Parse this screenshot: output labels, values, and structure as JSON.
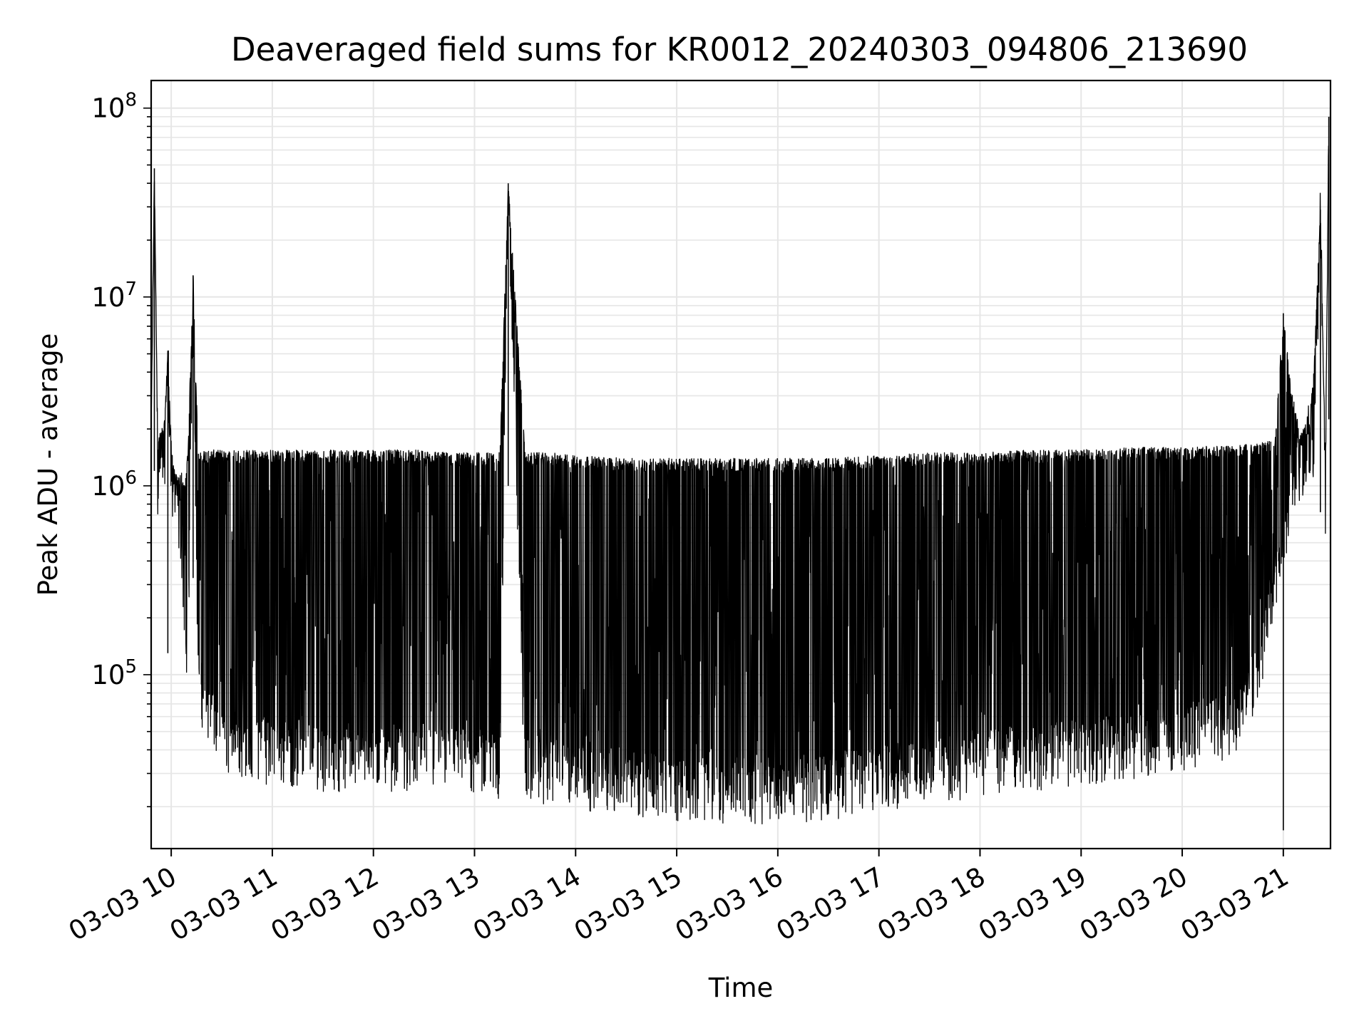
{
  "chart_data": {
    "type": "line",
    "title": "Deaveraged field sums for KR0012_20240303_094806_213690",
    "xlabel": "Time",
    "ylabel": "Peak ADU - average",
    "y_scale": "log",
    "ylim": [
      12000,
      140000000
    ],
    "xlim": [
      "2024-03-03T09:48:06",
      "2024-03-03T21:28:00"
    ],
    "grid": true,
    "legend": "none",
    "line_color": "#000000",
    "grid_color": "#e6e6e6",
    "x_tick_labels": [
      "03-03 10",
      "03-03 11",
      "03-03 12",
      "03-03 13",
      "03-03 14",
      "03-03 15",
      "03-03 16",
      "03-03 17",
      "03-03 18",
      "03-03 19",
      "03-03 20",
      "03-03 21"
    ],
    "x_tick_values": [
      "2024-03-03T10:00",
      "2024-03-03T11:00",
      "2024-03-03T12:00",
      "2024-03-03T13:00",
      "2024-03-03T14:00",
      "2024-03-03T15:00",
      "2024-03-03T16:00",
      "2024-03-03T17:00",
      "2024-03-03T18:00",
      "2024-03-03T19:00",
      "2024-03-03T20:00",
      "2024-03-03T21:00"
    ],
    "y_tick_labels": [
      {
        "base": "10",
        "exp": "5",
        "value": 100000
      },
      {
        "base": "10",
        "exp": "6",
        "value": 1000000
      },
      {
        "base": "10",
        "exp": "7",
        "value": 10000000
      },
      {
        "base": "10",
        "exp": "8",
        "value": 100000000
      }
    ],
    "series": [
      {
        "x": [
          "2024-03-03T09:48",
          "2024-03-03T09:50",
          "2024-03-03T09:52",
          "2024-03-03T09:54",
          "2024-03-03T09:56",
          "2024-03-03T09:58",
          "2024-03-03T10:00",
          "2024-03-03T10:02",
          "2024-03-03T10:04",
          "2024-03-03T10:06",
          "2024-03-03T10:08",
          "2024-03-03T10:10",
          "2024-03-03T10:13",
          "2024-03-03T10:16",
          "2024-03-03T10:18",
          "2024-03-03T10:20",
          "2024-03-03T10:22",
          "2024-03-03T10:25",
          "2024-03-03T10:28",
          "2024-03-03T10:32",
          "2024-03-03T10:36",
          "2024-03-03T10:40",
          "2024-03-03T10:45",
          "2024-03-03T10:50",
          "2024-03-03T10:55",
          "2024-03-03T11:00",
          "2024-03-03T11:10",
          "2024-03-03T11:20",
          "2024-03-03T11:30",
          "2024-03-03T11:45",
          "2024-03-03T12:00",
          "2024-03-03T12:15",
          "2024-03-03T12:30",
          "2024-03-03T12:45",
          "2024-03-03T13:00",
          "2024-03-03T13:15",
          "2024-03-03T13:20",
          "2024-03-03T13:30",
          "2024-03-03T13:45",
          "2024-03-03T14:00",
          "2024-03-03T14:30",
          "2024-03-03T15:00",
          "2024-03-03T15:30",
          "2024-03-03T16:00",
          "2024-03-03T16:30",
          "2024-03-03T17:00",
          "2024-03-03T17:30",
          "2024-03-03T18:00",
          "2024-03-03T18:30",
          "2024-03-03T19:00",
          "2024-03-03T19:30",
          "2024-03-03T20:00",
          "2024-03-03T20:30",
          "2024-03-03T20:45",
          "2024-03-03T20:55",
          "2024-03-03T21:00",
          "2024-03-03T21:05",
          "2024-03-03T21:10",
          "2024-03-03T21:15",
          "2024-03-03T21:18",
          "2024-03-03T21:22",
          "2024-03-03T21:25",
          "2024-03-03T21:27"
        ],
        "base": [
          1200000,
          48000000,
          1000000,
          1300000,
          1500000,
          5200000,
          1100000,
          800000,
          700000,
          600000,
          200000,
          150000,
          13000000,
          110000,
          90000,
          75000,
          65000,
          60000,
          55000,
          50000,
          48000,
          47000,
          46000,
          45000,
          44000,
          43000,
          42000,
          41000,
          40000,
          40000,
          40000,
          40000,
          40000,
          38000,
          37000,
          36000,
          40000000,
          35000,
          34000,
          32000,
          30000,
          28000,
          27000,
          27000,
          28000,
          30000,
          33000,
          37000,
          40000,
          43000,
          46000,
          50000,
          60000,
          100000,
          300000,
          600000,
          1000000,
          1300000,
          2000000,
          1200000,
          29000000,
          900000,
          90000000
        ],
        "peak": [
          1800000,
          48000000,
          1800000,
          2000000,
          2200000,
          5200000,
          1700000,
          1200000,
          1100000,
          1200000,
          1000000,
          1600000,
          13000000,
          1500000,
          1500000,
          1550000,
          1550000,
          1550000,
          1550000,
          1550000,
          1550000,
          1550000,
          1550000,
          1550000,
          1550000,
          1550000,
          1550000,
          1550000,
          1550000,
          1550000,
          1550000,
          1550000,
          1550000,
          1500000,
          1500000,
          1500000,
          40000000,
          1500000,
          1500000,
          1450000,
          1400000,
          1400000,
          1400000,
          1400000,
          1400000,
          1450000,
          1500000,
          1500000,
          1550000,
          1550000,
          1600000,
          1600000,
          1650000,
          1700000,
          1800000,
          8200000,
          3200000,
          1900000,
          2000000,
          4000000,
          29000000,
          1300000,
          90000000
        ]
      }
    ]
  }
}
